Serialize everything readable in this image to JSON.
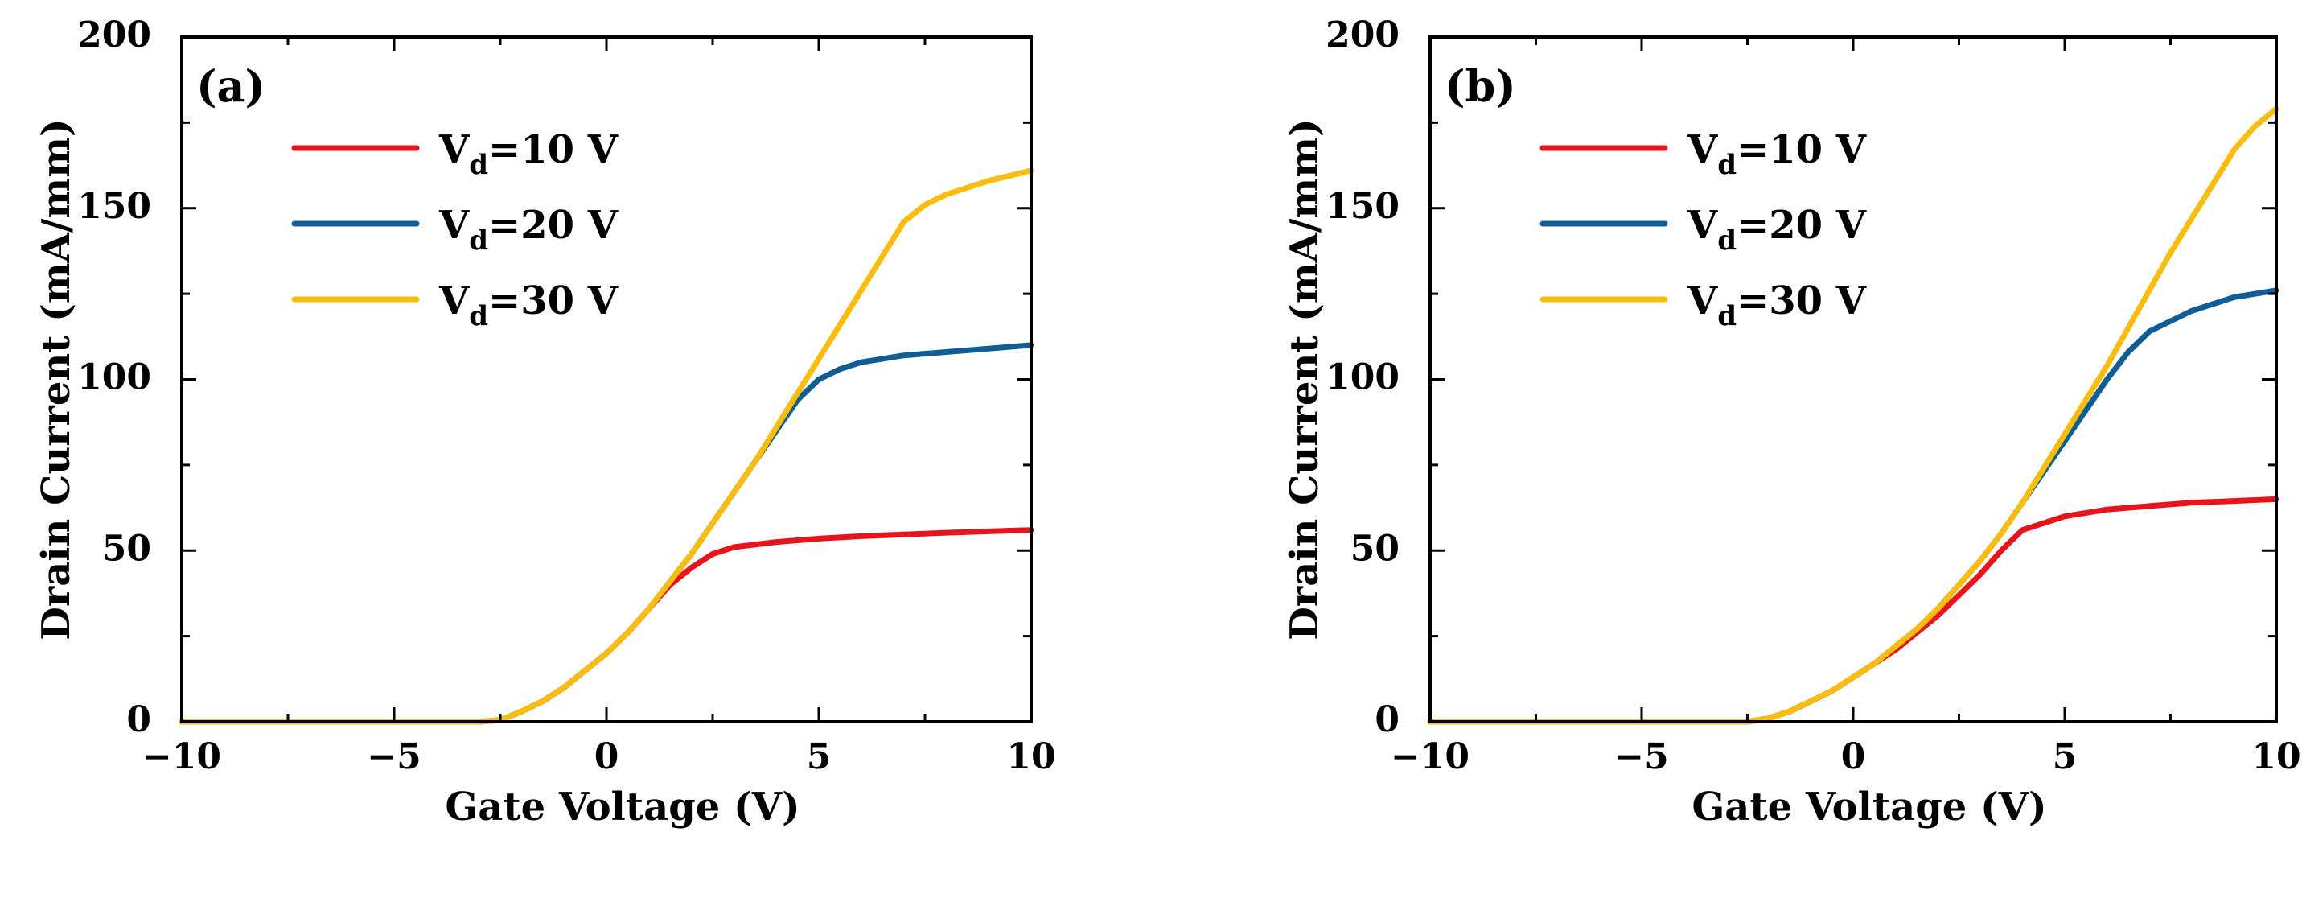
{
  "chart_data": [
    {
      "type": "line",
      "panel_label": "(a)",
      "xlabel": "Gate Voltage (V)",
      "ylabel": "Drain Current (mA/mm)",
      "xlim": [
        -10,
        10
      ],
      "ylim": [
        0,
        200
      ],
      "xticks": [
        -10,
        -5,
        0,
        5,
        10
      ],
      "xtick_labels": [
        "−10",
        "−5",
        "0",
        "5",
        "10"
      ],
      "yticks": [
        0,
        50,
        100,
        150,
        200
      ],
      "ytick_labels": [
        "0",
        "50",
        "100",
        "150",
        "200"
      ],
      "legend_position": "top-left",
      "series": [
        {
          "name": "V_d=10 V",
          "legend_main": "V",
          "legend_sub": "d",
          "legend_rest": "=10 V",
          "color": "#e8141b",
          "x": [
            -10,
            -5,
            -3,
            -2.5,
            -2,
            -1.5,
            -1,
            -0.5,
            0,
            0.5,
            1,
            1.5,
            2,
            2.5,
            3,
            4,
            5,
            6,
            7,
            8,
            9,
            10
          ],
          "y": [
            0,
            0,
            0,
            0.5,
            3,
            6,
            10,
            15,
            20,
            26,
            33,
            40,
            45,
            49,
            51,
            52.5,
            53.5,
            54.2,
            54.7,
            55.2,
            55.6,
            56
          ]
        },
        {
          "name": "V_d=20 V",
          "legend_main": "V",
          "legend_sub": "d",
          "legend_rest": "=20 V",
          "color": "#0f5d94",
          "x": [
            -10,
            -5,
            -3,
            -2.5,
            -2,
            -1.5,
            -1,
            -0.5,
            0,
            0.5,
            1,
            1.5,
            2,
            2.5,
            3,
            3.5,
            4,
            4.5,
            5,
            5.5,
            6,
            7,
            8,
            9,
            10
          ],
          "y": [
            0,
            0,
            0,
            0.5,
            3,
            6,
            10,
            15,
            20,
            26,
            33,
            41,
            49,
            58,
            67,
            76,
            85,
            94,
            100,
            103,
            105,
            107,
            108,
            109,
            110
          ]
        },
        {
          "name": "V_d=30 V",
          "legend_main": "V",
          "legend_sub": "d",
          "legend_rest": "=30 V",
          "color": "#f8bd0e",
          "x": [
            -10,
            -5,
            -3,
            -2.5,
            -2,
            -1.5,
            -1,
            -0.5,
            0,
            0.5,
            1,
            1.5,
            2,
            2.5,
            3,
            3.5,
            4,
            4.5,
            5,
            5.5,
            6,
            6.5,
            7,
            7.5,
            8,
            9,
            10
          ],
          "y": [
            0,
            0,
            0,
            0.5,
            3,
            6,
            10,
            15,
            20,
            26,
            33,
            41,
            49,
            58,
            67,
            76,
            86,
            96,
            106,
            116,
            126,
            136,
            146,
            151,
            154,
            158,
            161
          ]
        }
      ]
    },
    {
      "type": "line",
      "panel_label": "(b)",
      "xlabel": "Gate Voltage (V)",
      "ylabel": "Drain Current (mA/mm)",
      "xlim": [
        -10,
        10
      ],
      "ylim": [
        0,
        200
      ],
      "xticks": [
        -10,
        -5,
        0,
        5,
        10
      ],
      "xtick_labels": [
        "−10",
        "−5",
        "0",
        "5",
        "10"
      ],
      "yticks": [
        0,
        50,
        100,
        150,
        200
      ],
      "ytick_labels": [
        "0",
        "50",
        "100",
        "150",
        "200"
      ],
      "legend_position": "top-left",
      "series": [
        {
          "name": "V_d=10 V",
          "legend_main": "V",
          "legend_sub": "d",
          "legend_rest": "=10 V",
          "color": "#e8141b",
          "x": [
            -10,
            -5,
            -2.5,
            -2,
            -1.5,
            -1,
            -0.5,
            0,
            0.5,
            1,
            1.5,
            2,
            2.5,
            3,
            3.5,
            4,
            4.5,
            5,
            6,
            7,
            8,
            9,
            10
          ],
          "y": [
            0,
            0,
            0,
            1,
            3,
            6,
            9,
            13,
            17,
            21,
            26,
            31,
            37,
            43,
            50,
            56,
            58,
            60,
            62,
            63,
            64,
            64.5,
            65
          ]
        },
        {
          "name": "V_d=20 V",
          "legend_main": "V",
          "legend_sub": "d",
          "legend_rest": "=20 V",
          "color": "#0f5d94",
          "x": [
            -10,
            -5,
            -2.5,
            -2,
            -1.5,
            -1,
            -0.5,
            0,
            0.5,
            1,
            1.5,
            2,
            2.5,
            3,
            3.5,
            4,
            4.5,
            5,
            5.5,
            6,
            6.5,
            7,
            8,
            9,
            10
          ],
          "y": [
            0,
            0,
            0,
            1,
            3,
            6,
            9,
            13,
            17,
            22,
            27,
            33,
            40,
            47,
            55,
            64,
            73,
            82,
            91,
            100,
            108,
            114,
            120,
            124,
            126
          ]
        },
        {
          "name": "V_d=30 V",
          "legend_main": "V",
          "legend_sub": "d",
          "legend_rest": "=30 V",
          "color": "#f8bd0e",
          "x": [
            -10,
            -5,
            -2.5,
            -2,
            -1.5,
            -1,
            -0.5,
            0,
            0.5,
            1,
            1.5,
            2,
            2.5,
            3,
            3.5,
            4,
            4.5,
            5,
            5.5,
            6,
            6.5,
            7,
            7.5,
            8,
            8.5,
            9,
            9.5,
            10
          ],
          "y": [
            0,
            0,
            0,
            1,
            3,
            6,
            9,
            13,
            17,
            22,
            27,
            33,
            40,
            47,
            55,
            64,
            74,
            84,
            94,
            104,
            115,
            126,
            137,
            147,
            157,
            167,
            174,
            179
          ]
        }
      ]
    }
  ]
}
